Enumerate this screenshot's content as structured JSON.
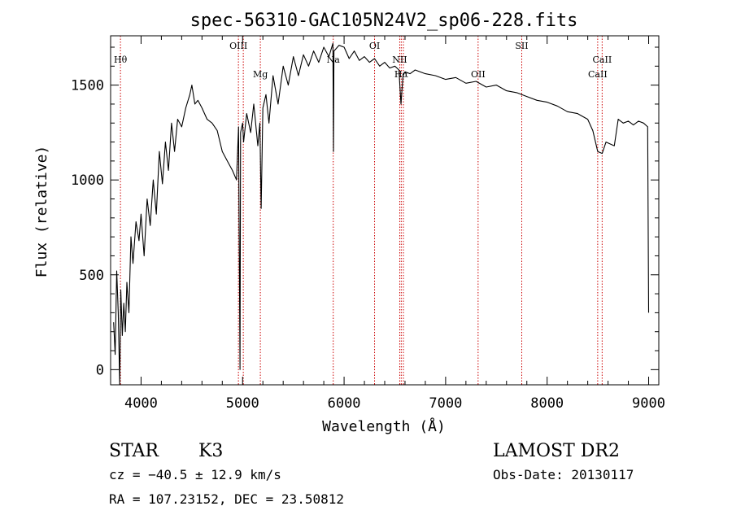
{
  "chart_data": {
    "type": "line",
    "title": "spec-56310-GAC105N24V2_sp06-228.fits",
    "xlabel": "Wavelength (Å)",
    "ylabel": "Flux (relative)",
    "xlim": [
      3700,
      9100
    ],
    "ylim": [
      -80,
      1760
    ],
    "xticks": [
      4000,
      5000,
      6000,
      7000,
      8000,
      9000
    ],
    "yticks": [
      0,
      500,
      1000,
      1500
    ],
    "grid": false,
    "line_color": "#000000",
    "marker_color": "#cc0000",
    "series": [
      {
        "x": [
          3730,
          3745,
          3760,
          3775,
          3790,
          3800,
          3815,
          3830,
          3845,
          3860,
          3880,
          3900,
          3920,
          3950,
          3980,
          4000,
          4030,
          4060,
          4090,
          4120,
          4150,
          4180,
          4210,
          4240,
          4270,
          4300,
          4330,
          4360,
          4400,
          4440,
          4480,
          4500,
          4530,
          4560,
          4600,
          4650,
          4700,
          4750,
          4800,
          4850,
          4900,
          4940,
          4960,
          4975,
          4980,
          5000,
          5010,
          5040,
          5080,
          5110,
          5150,
          5170,
          5183,
          5200,
          5230,
          5260,
          5300,
          5350,
          5400,
          5450,
          5500,
          5550,
          5600,
          5650,
          5700,
          5750,
          5800,
          5850,
          5890,
          5895,
          5900,
          5950,
          6000,
          6050,
          6100,
          6150,
          6200,
          6250,
          6300,
          6350,
          6400,
          6450,
          6500,
          6540,
          6560,
          6580,
          6600,
          6650,
          6700,
          6800,
          6900,
          7000,
          7100,
          7200,
          7300,
          7400,
          7500,
          7600,
          7700,
          7800,
          7900,
          8000,
          8100,
          8200,
          8300,
          8400,
          8450,
          8498,
          8542,
          8580,
          8662,
          8700,
          8750,
          8800,
          8850,
          8900,
          8950,
          8990,
          9000
        ],
        "y": [
          250,
          80,
          520,
          300,
          -80,
          420,
          180,
          350,
          200,
          460,
          300,
          700,
          560,
          780,
          680,
          820,
          600,
          900,
          760,
          1000,
          820,
          1150,
          980,
          1200,
          1050,
          1300,
          1150,
          1320,
          1280,
          1380,
          1450,
          1500,
          1400,
          1420,
          1380,
          1320,
          1300,
          1260,
          1150,
          1100,
          1050,
          1000,
          1280,
          0,
          1250,
          1300,
          1200,
          1350,
          1250,
          1400,
          1180,
          1300,
          850,
          1380,
          1450,
          1300,
          1550,
          1400,
          1600,
          1500,
          1650,
          1550,
          1660,
          1600,
          1680,
          1620,
          1700,
          1650,
          1720,
          1150,
          1680,
          1710,
          1700,
          1640,
          1680,
          1630,
          1650,
          1620,
          1640,
          1600,
          1620,
          1590,
          1600,
          1580,
          1400,
          1550,
          1570,
          1560,
          1580,
          1560,
          1550,
          1530,
          1540,
          1510,
          1520,
          1490,
          1500,
          1470,
          1460,
          1440,
          1420,
          1410,
          1390,
          1360,
          1350,
          1320,
          1260,
          1150,
          1140,
          1200,
          1180,
          1320,
          1300,
          1310,
          1290,
          1310,
          1300,
          1280,
          300
        ]
      }
    ],
    "lines": [
      {
        "label": "Hθ",
        "x": 3797,
        "label_pos": "upper"
      },
      {
        "label": "OIII",
        "x": 4959,
        "label_pos": "top"
      },
      {
        "label": "OIII",
        "x": 5007,
        "label_pos": "none"
      },
      {
        "label": "Mg",
        "x": 5175,
        "label_pos": "mid"
      },
      {
        "label": "Na",
        "x": 5893,
        "label_pos": "upper"
      },
      {
        "label": "OI",
        "x": 6300,
        "label_pos": "top"
      },
      {
        "label": "NII",
        "x": 6548,
        "label_pos": "upper"
      },
      {
        "label": "Hα",
        "x": 6563,
        "label_pos": "mid"
      },
      {
        "label": "NII",
        "x": 6584,
        "label_pos": "none"
      },
      {
        "label": "OII",
        "x": 7320,
        "label_pos": "mid"
      },
      {
        "label": "SII",
        "x": 7750,
        "label_pos": "top"
      },
      {
        "label": "CaII",
        "x": 8498,
        "label_pos": "mid"
      },
      {
        "label": "CaII",
        "x": 8542,
        "label_pos": "upper"
      }
    ]
  },
  "info": {
    "object_class": "STAR",
    "subclass": "K3",
    "survey": "LAMOST DR2",
    "redshift": "cz = −40.5 ± 12.9 km/s",
    "obs_date": "Obs-Date: 20130117",
    "coords": "RA = 107.23152, DEC =  23.50812"
  }
}
